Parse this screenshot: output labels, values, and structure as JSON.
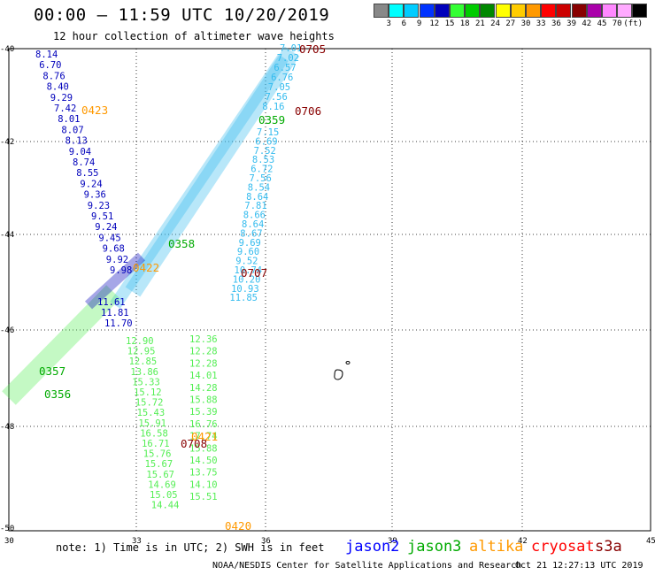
{
  "header": {
    "title": "00:00 – 11:59 UTC 10/20/2019",
    "subtitle": "12 hour collection of altimeter wave heights"
  },
  "color_scale": {
    "colors": [
      "#888888",
      "#00ffff",
      "#00ccff",
      "#0033ff",
      "#0000bb",
      "#33ff33",
      "#00cc00",
      "#008800",
      "#ffff00",
      "#ffcc00",
      "#ff9900",
      "#ff0000",
      "#cc0000",
      "#880000",
      "#aa00aa",
      "#ff88ff",
      "#ffaaff",
      "#000000"
    ],
    "labels": [
      "3",
      "6",
      "9",
      "12",
      "15",
      "18",
      "21",
      "24",
      "27",
      "30",
      "33",
      "36",
      "39",
      "42",
      "45",
      "70",
      "(ft)"
    ]
  },
  "map": {
    "lon_ticks": [
      "30",
      "33",
      "36",
      "39",
      "42",
      "45"
    ],
    "lat_ticks": [
      "-40",
      "-42",
      "-44",
      "-46",
      "-48",
      "-50"
    ]
  },
  "tracks": [
    {
      "pass_id": "0423",
      "satellite": "altika",
      "values": [
        "8.14",
        "6.70",
        "8.76",
        "8.40",
        "9.29",
        "7.42",
        "8.01",
        "8.07",
        "8.13",
        "9.04",
        "8.74",
        "8.55",
        "9.24",
        "9.36",
        "9.23",
        "9.51",
        "9.24",
        "9.45",
        "9.68",
        "9.92",
        "9.98"
      ]
    },
    {
      "pass_id": "0422",
      "satellite": "altika",
      "values": [
        "11.61",
        "11.81",
        "11.70"
      ]
    },
    {
      "pass_id": "0705",
      "satellite": "s3a",
      "values": [
        "7.01",
        "7.02",
        "6.57",
        "6.76",
        "7.05",
        "7.56",
        "8.16"
      ]
    },
    {
      "pass_id": "0359",
      "satellite": "jason3",
      "values": [
        "7.15",
        "6.69",
        "7.52",
        "8.53",
        "6.72",
        "7.56",
        "8.54",
        "8.64",
        "7.81",
        "8.66",
        "8.64",
        "8.67",
        "9.69",
        "9.60",
        "9.52",
        "10.74",
        "10.20",
        "10.93",
        "11.85"
      ]
    },
    {
      "pass_id": "0421",
      "satellite": "altika",
      "values": [
        "12.90",
        "12.95",
        "12.85",
        "13.86",
        "15.33",
        "15.12",
        "15.72",
        "15.43",
        "15.91",
        "16.58",
        "16.71",
        "15.76",
        "15.67",
        "15.67",
        "14.69",
        "15.05",
        "14.44"
      ]
    },
    {
      "pass_id": "0708",
      "satellite": "s3a",
      "values": [
        "12.36",
        "12.28",
        "12.28",
        "14.01",
        "14.28",
        "15.88",
        "15.39",
        "16.76",
        "17.74",
        "15.88",
        "14.50",
        "13.75",
        "14.10",
        "15.51"
      ]
    }
  ],
  "pass_labels": [
    {
      "text": "0705",
      "satellite": "s3a"
    },
    {
      "text": "0706",
      "satellite": "s3a"
    },
    {
      "text": "0359",
      "satellite": "jason3"
    },
    {
      "text": "0358",
      "satellite": "jason3"
    },
    {
      "text": "0707",
      "satellite": "s3a"
    },
    {
      "text": "0423",
      "satellite": "altika"
    },
    {
      "text": "0422",
      "satellite": "altika"
    },
    {
      "text": "0357",
      "satellite": "jason3"
    },
    {
      "text": "0356",
      "satellite": "jason3"
    },
    {
      "text": "0421",
      "satellite": "altika"
    },
    {
      "text": "0708",
      "satellite": "s3a"
    },
    {
      "text": "0420",
      "satellite": "altika"
    }
  ],
  "footer": {
    "note": "note: 1) Time is in UTC; 2) SWH is in feet",
    "credits": "NOAA/NESDIS Center for Satellite Applications and Research",
    "timestamp": "Oct 21 12:27:13 UTC 2019"
  },
  "satellite_legend": [
    {
      "name": "jason2",
      "color": "#0000ff"
    },
    {
      "name": "jason3",
      "color": "#00aa00"
    },
    {
      "name": "altika",
      "color": "#ff9900"
    },
    {
      "name": "cryosat",
      "color": "#ff0000"
    },
    {
      "name": "s3a",
      "color": "#880000"
    }
  ],
  "colors": {
    "cyan_light": "#33bbee",
    "blue_dark": "#0000bb",
    "green_light": "#55ee55",
    "green_mid": "#00aa00",
    "s3a": "#880000",
    "altika": "#ff9900"
  }
}
